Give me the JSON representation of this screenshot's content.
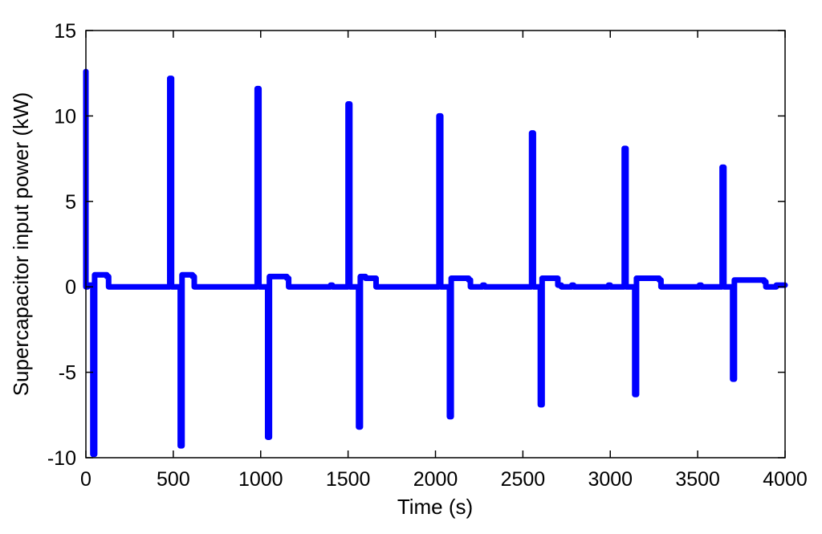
{
  "chart_data": {
    "type": "line",
    "title": "",
    "xlabel": "Time (s)",
    "ylabel": "Supercapacitor input power (kW)",
    "xlim": [
      0,
      4000
    ],
    "ylim": [
      -10,
      15
    ],
    "xticks": [
      0,
      500,
      1000,
      1500,
      2000,
      2500,
      3000,
      3500,
      4000
    ],
    "yticks": [
      -10,
      -5,
      0,
      5,
      10,
      15
    ],
    "xtick_labels": [
      "0",
      "500",
      "1000",
      "1500",
      "2000",
      "2500",
      "3000",
      "3500",
      "4000"
    ],
    "ytick_labels": [
      "-10",
      "-5",
      "0",
      "5",
      "10",
      "15"
    ],
    "grid": false,
    "legend": "none",
    "colors": {
      "series": "#0000ff",
      "axes": "#000000",
      "background": "#ffffff"
    },
    "series": [
      {
        "x": [
          0,
          0,
          0,
          10,
          10,
          40,
          40,
          50,
          50,
          70,
          70,
          120,
          120,
          130,
          130,
          480,
          480,
          490,
          490,
          540,
          540,
          550,
          550,
          580,
          580,
          610,
          610,
          620,
          620,
          980,
          980,
          990,
          990,
          1040,
          1040,
          1050,
          1050,
          1080,
          1080,
          1150,
          1150,
          1160,
          1160,
          1400,
          1400,
          1410,
          1410,
          1500,
          1500,
          1510,
          1510,
          1560,
          1560,
          1570,
          1570,
          1600,
          1600,
          1650,
          1650,
          1660,
          1660,
          2020,
          2020,
          2030,
          2030,
          2080,
          2080,
          2090,
          2090,
          2120,
          2120,
          2190,
          2190,
          2200,
          2200,
          2270,
          2270,
          2280,
          2280,
          2550,
          2550,
          2560,
          2560,
          2600,
          2600,
          2610,
          2610,
          2640,
          2640,
          2700,
          2700,
          2720,
          2720,
          2780,
          2780,
          2790,
          2790,
          2990,
          2990,
          3000,
          3000,
          3080,
          3080,
          3090,
          3090,
          3140,
          3140,
          3150,
          3150,
          3180,
          3180,
          3280,
          3280,
          3290,
          3290,
          3510,
          3510,
          3520,
          3520,
          3640,
          3640,
          3650,
          3650,
          3700,
          3700,
          3710,
          3710,
          3740,
          3740,
          3880,
          3880,
          3890,
          3890,
          3950,
          3950,
          3960,
          3960,
          4000
        ],
        "y": [
          0,
          12.6,
          0,
          0,
          0.1,
          0.1,
          -9.8,
          -9.8,
          0.7,
          0.7,
          0.7,
          0.7,
          0.6,
          0.6,
          0,
          0,
          12.2,
          12.2,
          0,
          0,
          -9.3,
          -9.3,
          0.7,
          0.7,
          0.7,
          0.7,
          0.6,
          0.6,
          0,
          0,
          11.6,
          11.6,
          0,
          0,
          -8.8,
          -8.8,
          0.6,
          0.6,
          0.6,
          0.6,
          0.5,
          0.5,
          0,
          0,
          0.1,
          0.1,
          0,
          0,
          10.7,
          10.7,
          0,
          0,
          -8.2,
          -8.2,
          0.6,
          0.6,
          0.5,
          0.5,
          0.5,
          0.5,
          0,
          0,
          10,
          10,
          0,
          0,
          -7.6,
          -7.6,
          0.5,
          0.5,
          0.5,
          0.5,
          0.4,
          0.4,
          0,
          0,
          0.1,
          0.1,
          0,
          0,
          9,
          9,
          0,
          0,
          -6.9,
          -6.9,
          0.5,
          0.5,
          0.5,
          0.5,
          0.1,
          0.1,
          0,
          0,
          0.1,
          0.1,
          0,
          0,
          0.1,
          0.1,
          0,
          0,
          8.1,
          8.1,
          0,
          0,
          -6.3,
          -6.3,
          0.5,
          0.5,
          0.5,
          0.5,
          0.4,
          0.4,
          0,
          0,
          0.1,
          0.1,
          0,
          0,
          7,
          7,
          0,
          0,
          -5.4,
          -5.4,
          0.4,
          0.4,
          0.4,
          0.4,
          0.3,
          0.3,
          0,
          0,
          0.1,
          0.1,
          0.1,
          0.1
        ]
      }
    ]
  }
}
